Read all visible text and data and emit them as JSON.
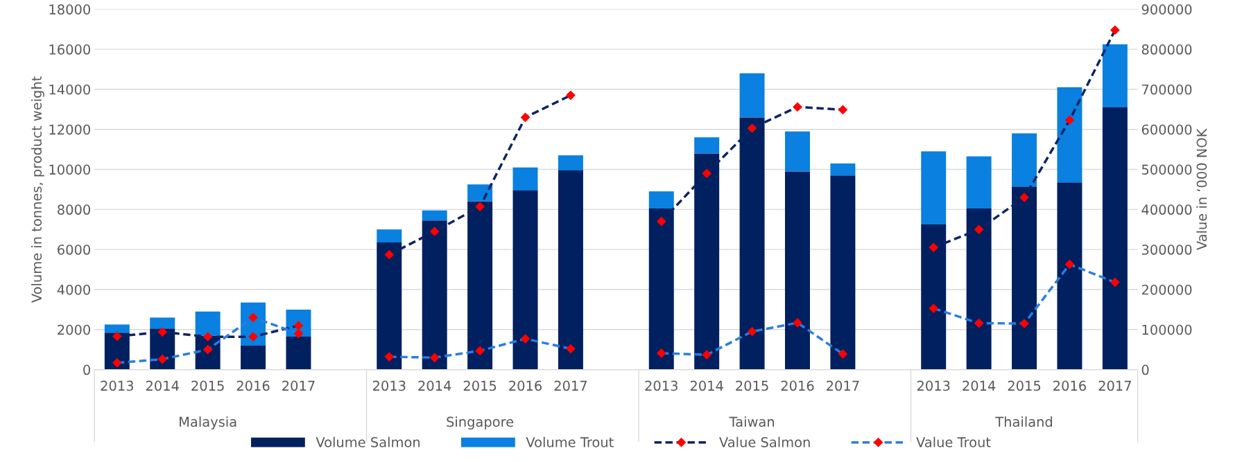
{
  "chart_data": {
    "type": "bar",
    "stacked": true,
    "ylabel": "Volume in tonnes, product weight",
    "y2label": "Value in ‘000 NOK",
    "categories": [
      "2013",
      "2014",
      "2015",
      "2016",
      "2017",
      null,
      "2013",
      "2014",
      "2015",
      "2016",
      "2017",
      null,
      "2013",
      "2014",
      "2015",
      "2016",
      "2017",
      null,
      "2013",
      "2014",
      "2015",
      "2016",
      "2017"
    ],
    "annotations": [
      "Malaysia",
      "Singapore",
      "Taiwan",
      "Thailand"
    ],
    "series": [
      {
        "name": "Volume Salmon",
        "color": "#002060",
        "values": [
          1850,
          2050,
          1700,
          1200,
          1650,
          null,
          6350,
          7450,
          8400,
          8950,
          9950,
          null,
          8050,
          10800,
          12600,
          9900,
          9700,
          null,
          7250,
          8050,
          9150,
          9350,
          13100
        ]
      },
      {
        "name": "Volume Trout",
        "color": "#0a80e0",
        "values": [
          400,
          550,
          1200,
          2150,
          1350,
          null,
          650,
          500,
          850,
          1150,
          750,
          null,
          850,
          800,
          2200,
          2000,
          600,
          null,
          3650,
          2600,
          2650,
          4750,
          3150
        ]
      },
      {
        "name": "Value Salmon",
        "type": "line",
        "axis": "y2",
        "color": "#0d2461",
        "marker": "diamond",
        "line_style": "dashed",
        "values": [
          83000,
          94000,
          82000,
          82000,
          110000,
          null,
          287000,
          345000,
          407000,
          630000,
          685000,
          null,
          370000,
          490000,
          603000,
          656000,
          649000,
          null,
          305000,
          350000,
          430000,
          623000,
          848000
        ]
      },
      {
        "name": "Value Trout",
        "type": "line",
        "axis": "y2",
        "color": "#2a7de1",
        "marker": "diamond",
        "line_style": "dashed",
        "values": [
          17000,
          26000,
          50000,
          130000,
          90000,
          null,
          32000,
          30000,
          47000,
          77000,
          52000,
          null,
          41000,
          37000,
          95000,
          117000,
          39000,
          null,
          153000,
          116000,
          115000,
          263000,
          218000
        ]
      }
    ],
    "ylim": [
      0,
      18000
    ],
    "yticks": [
      0,
      2000,
      4000,
      6000,
      8000,
      10000,
      12000,
      14000,
      16000,
      18000
    ],
    "y2lim": [
      0,
      900000
    ],
    "y2ticks": [
      0,
      100000,
      200000,
      300000,
      400000,
      500000,
      600000,
      700000,
      800000,
      900000
    ],
    "grid": "y",
    "legend": "bottom"
  }
}
